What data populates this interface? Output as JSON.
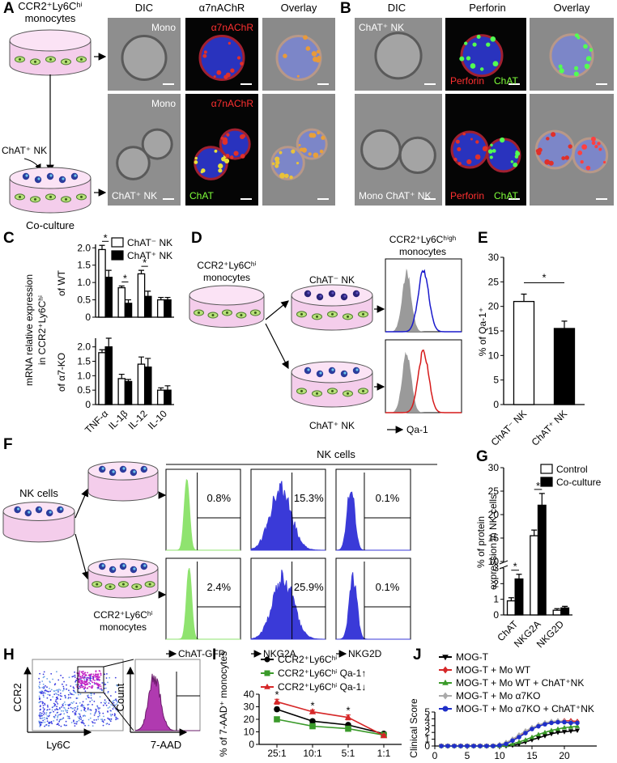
{
  "panel_labels": {
    "a": "A",
    "b": "B",
    "c": "C",
    "d": "D",
    "e": "E",
    "f": "F",
    "g": "G",
    "h": "H",
    "i": "I",
    "j": "J"
  },
  "panel_a": {
    "title": [
      "CCR2⁺Ly6Cʰⁱ",
      "monocytes"
    ],
    "arrow_label": "ChAT⁺ NK",
    "bottom_label": "Co-culture",
    "headers": [
      "DIC",
      "α7nAChR",
      "Overlay"
    ],
    "top_row": [
      "Mono",
      "α7nAChR"
    ],
    "bottom_row": [
      "Mono",
      "α7nAChR",
      "ChAT⁺ NK",
      "ChAT"
    ]
  },
  "panel_b": {
    "headers": [
      "DIC",
      "Perforin",
      "Overlay"
    ],
    "top_row": [
      "ChAT⁺ NK",
      "Perforin",
      "ChAT"
    ],
    "bottom_row": [
      "Mono ChAT⁺ NK",
      "Perforin",
      "ChAT"
    ]
  },
  "panel_c": {
    "ylabel": [
      "mRNA relative expression",
      "in CCR2⁺Ly6Cʰⁱ"
    ]
  },
  "panel_d": {
    "source": [
      "CCR2⁺Ly6Cʰⁱ",
      "monocytes"
    ],
    "arms": [
      "ChAT⁻ NK",
      "ChAT⁺ NK"
    ],
    "header": [
      "CCR2⁺Ly6Cʰⁱᵍʰ",
      "monocytes"
    ],
    "xlabel": "Qa-1"
  },
  "panel_f": {
    "source": "NK cells",
    "coculture": [
      "CCR2⁺Ly6Cʰⁱ",
      "monocytes"
    ],
    "header": "NK cells",
    "gates": [
      [
        "0.8%",
        "15.3%",
        "0.1%"
      ],
      [
        "2.4%",
        "25.9%",
        "0.1%"
      ]
    ],
    "xlabels": [
      "ChAT-GFP",
      "NKG2A",
      "NKG2D"
    ]
  },
  "panel_h": {
    "scatter_axes": [
      "CCR2",
      "Ly6C"
    ],
    "histogram_axes": [
      "Count",
      "7-AAD"
    ]
  },
  "chart_data": [
    {
      "type": "bar",
      "ylabel": "of WT",
      "categories": [
        null,
        null,
        null,
        null
      ],
      "series": [
        {
          "name": "ChAT⁻ NK",
          "color": "#ffffff",
          "values": [
            1.95,
            0.85,
            1.25,
            0.5
          ],
          "errors": [
            0.12,
            0.05,
            0.1,
            0.07
          ]
        },
        {
          "name": "ChAT⁺ NK",
          "color": "#000000",
          "values": [
            1.15,
            0.4,
            0.6,
            0.5
          ],
          "errors": [
            0.2,
            0.1,
            0.15,
            0.07
          ]
        }
      ],
      "significance": [
        "*",
        "*",
        "*",
        null
      ],
      "ylim": [
        0,
        2.1
      ],
      "yticks": [
        0,
        0.5,
        {
          "value": 1,
          "label": "1.0"
        },
        1.5,
        {
          "value": 2,
          "label": "2.0"
        }
      ]
    },
    {
      "type": "bar",
      "ylabel": "of α7-KO",
      "categories": [
        "TNF-α",
        "IL-1β",
        "IL-12",
        "IL-10"
      ],
      "series": [
        {
          "color": "#ffffff",
          "values": [
            1.8,
            0.9,
            1.4,
            0.5
          ],
          "errors": [
            0.1,
            0.15,
            0.25,
            0.08
          ]
        },
        {
          "color": "#000000",
          "values": [
            2.0,
            0.8,
            1.3,
            0.5
          ],
          "errors": [
            0.3,
            0.07,
            0.3,
            0.15
          ]
        }
      ],
      "ylim": [
        0,
        2.3
      ],
      "yticks": [
        0,
        0.5,
        {
          "value": 1,
          "label": "1.0"
        },
        1.5,
        {
          "value": 2,
          "label": "2.0"
        }
      ]
    },
    {
      "type": "bar",
      "ylabel": "% of Qa-1⁺",
      "categories": [
        "ChAT⁻ NK",
        "ChAT⁺ NK"
      ],
      "colors": [
        "#ffffff",
        "#000000"
      ],
      "series": [
        {
          "values": [
            21,
            15.5
          ],
          "errors": [
            1.5,
            1.5
          ]
        }
      ],
      "significance": "*",
      "ylim": [
        0,
        30
      ],
      "yticks": [
        0,
        5,
        10,
        15,
        20,
        25,
        30
      ]
    },
    {
      "type": "bar",
      "ylabel": [
        "% of protein",
        "expression in NK cells"
      ],
      "categories": [
        "ChAT",
        "NKG2A",
        "NKG2D"
      ],
      "series": [
        {
          "name": "Control",
          "color": "#ffffff",
          "values": [
            0.9,
            15.5,
            0.3
          ],
          "errors": [
            0.2,
            1.2,
            0.1
          ]
        },
        {
          "name": "Co-culture",
          "color": "#000000",
          "values": [
            2.3,
            22,
            0.45
          ],
          "errors": [
            0.3,
            2.5,
            0.1
          ]
        }
      ],
      "significance": [
        "*",
        "*",
        null
      ],
      "ylim": [
        0,
        30
      ],
      "ybreak": [
        3,
        10
      ],
      "yticks": [
        0,
        1,
        2,
        3,
        10,
        15,
        20,
        25,
        30
      ]
    },
    {
      "type": "line",
      "ylabel": "% of 7-AAD⁺ monocytes",
      "categories": [
        "25:1",
        "10:1",
        "5:1",
        "1:1"
      ],
      "series": [
        {
          "name": "CCR2⁺Ly6Cʰⁱ",
          "color": "#000000",
          "marker": "circle",
          "values": [
            28,
            18.5,
            15.5,
            8.5
          ],
          "errors": [
            1.5,
            1,
            1,
            0.8
          ]
        },
        {
          "name": "CCR2⁺Ly6Cʰⁱ Qa-1↑",
          "color": "#3a9a2a",
          "marker": "square",
          "values": [
            20,
            14.5,
            12.5,
            7.5
          ],
          "errors": [
            1.5,
            1,
            0.8,
            0.8
          ]
        },
        {
          "name": "CCR2⁺Ly6Cʰⁱ Qa-1↓",
          "color": "#d62728",
          "marker": "triangle-up",
          "values": [
            34,
            26,
            21.5,
            7
          ],
          "errors": [
            2,
            1.5,
            2,
            1
          ]
        }
      ],
      "significance": [
        "*",
        "*",
        "*",
        null
      ],
      "ylim": [
        0,
        40
      ],
      "yticks": [
        0,
        10,
        20,
        30,
        40
      ]
    },
    {
      "type": "line",
      "ylabel": "Clinical Score",
      "x": [
        1,
        2,
        3,
        4,
        5,
        6,
        7,
        8,
        9,
        10,
        11,
        12,
        13,
        14,
        15,
        16,
        17,
        18,
        19,
        20,
        21,
        22
      ],
      "series": [
        {
          "name": "MOG-T",
          "color": "#000000",
          "marker": "triangle-down",
          "values": [
            0,
            0,
            0,
            0,
            0,
            0,
            0,
            0,
            0,
            0,
            0,
            0.1,
            0.3,
            0.6,
            0.9,
            1.2,
            1.5,
            1.8,
            2.0,
            2.1,
            2.2,
            2.3
          ]
        },
        {
          "name": "MOG-T + Mo WT",
          "color": "#d62728",
          "marker": "diamond",
          "values": [
            0,
            0,
            0,
            0,
            0,
            0,
            0,
            0,
            0,
            0.1,
            0.4,
            0.8,
            1.5,
            2.1,
            2.6,
            3.0,
            3.3,
            3.5,
            3.6,
            3.7,
            3.7,
            3.6
          ]
        },
        {
          "name": "MOG-T + Mo WT + ChAT⁺NK",
          "color": "#3a9a2a",
          "marker": "triangle-up",
          "values": [
            0,
            0,
            0,
            0,
            0,
            0,
            0,
            0,
            0,
            0,
            0.1,
            0.3,
            0.6,
            0.9,
            1.3,
            1.7,
            2.0,
            2.3,
            2.5,
            2.7,
            2.8,
            2.9
          ]
        },
        {
          "name": "MOG-T + Mo α7KO",
          "color": "#aaaaaa",
          "marker": "diamond",
          "values": [
            0,
            0,
            0,
            0,
            0,
            0,
            0,
            0,
            0,
            0.2,
            0.5,
            1.0,
            1.6,
            2.2,
            2.7,
            3.1,
            3.4,
            3.6,
            3.7,
            3.6,
            3.5,
            3.4
          ]
        },
        {
          "name": "MOG-T + Mo α7KO + ChAT⁺NK",
          "color": "#1f2fc8",
          "marker": "circle",
          "values": [
            0,
            0,
            0,
            0,
            0,
            0,
            0,
            0,
            0,
            0.1,
            0.3,
            0.8,
            1.3,
            1.9,
            2.5,
            2.9,
            3.2,
            3.4,
            3.5,
            3.5,
            3.4,
            3.4
          ]
        }
      ],
      "xlim": [
        0,
        25
      ],
      "xticks": [
        0,
        5,
        10,
        15,
        20
      ],
      "ylim": [
        0,
        5
      ],
      "yticks": [
        0,
        1,
        2,
        3,
        4,
        5
      ]
    }
  ]
}
